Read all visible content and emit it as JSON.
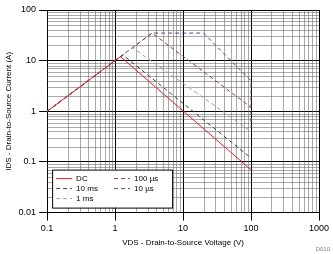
{
  "chart_data": {
    "type": "line",
    "x_label": "VDS - Drain-to-Source Voltage (V)",
    "y_label": "IDS - Drain-to-Source Current (A)",
    "annotations": [
      "D010"
    ],
    "log": true,
    "grid": true,
    "legend": "lower left",
    "xlim": [
      0.1,
      1000
    ],
    "xticks": [
      0.1,
      1,
      10,
      100,
      1000
    ],
    "ylim": [
      0.01,
      100
    ],
    "yticks": [
      0.01,
      0.1,
      1,
      10,
      100
    ],
    "series": [
      {
        "name": "DC",
        "color": "#e02020",
        "line_style": "solid",
        "x": [
          0.1,
          1.2,
          100
        ],
        "values": [
          1,
          12,
          0.07
        ]
      },
      {
        "name": "10 ms",
        "color": "#404040",
        "line_style": "dashed",
        "x": [
          0.1,
          1.3,
          100
        ],
        "values": [
          1,
          13,
          0.12
        ]
      },
      {
        "name": "1 ms",
        "color": "#a0a0a0",
        "line_style": "dashed",
        "x": [
          0.1,
          1.8,
          100
        ],
        "values": [
          1,
          18,
          0.4
        ]
      },
      {
        "name": "100 µs",
        "color": "#8b3a3a",
        "line_style": "dashed",
        "x": [
          0.1,
          3.5,
          100
        ],
        "values": [
          1,
          35,
          1.2
        ]
      },
      {
        "name": "10 µs",
        "color": "#6a3d7a",
        "line_style": "dashed",
        "x": [
          0.1,
          3.5,
          20,
          100,
          100
        ],
        "values": [
          1,
          35,
          35,
          4,
          0.5
        ]
      }
    ]
  }
}
